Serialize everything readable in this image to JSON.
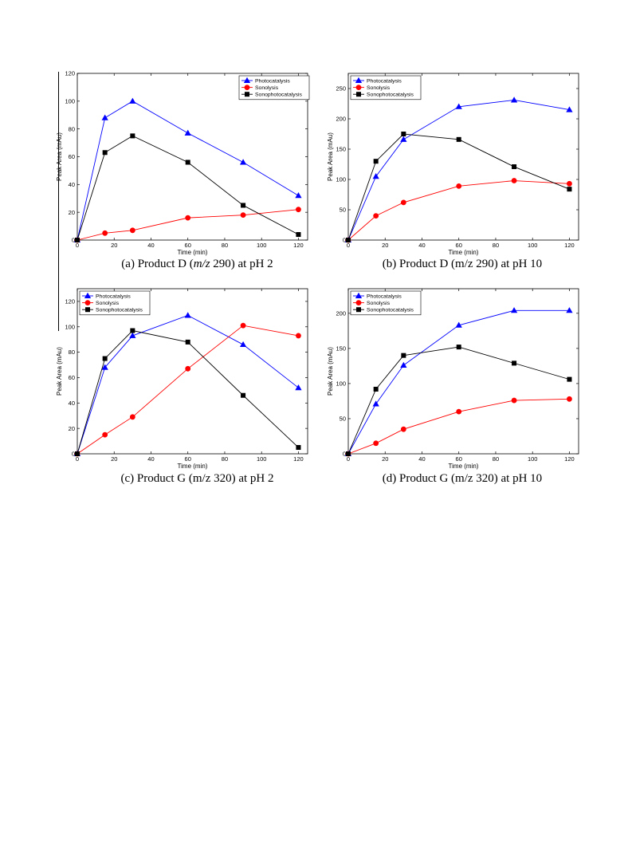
{
  "chart_data": [
    {
      "type": "line",
      "panel_id": "a",
      "caption": {
        "pre": "(a) Product D (",
        "italic": "m/z",
        "post": " 290) at pH 2"
      },
      "xlabel": "Time (min)",
      "ylabel": "Peak Area (mAu)",
      "xlim": [
        0,
        125
      ],
      "ylim": [
        0,
        120
      ],
      "xticks": [
        0,
        20,
        40,
        60,
        80,
        100,
        120
      ],
      "yticks": [
        0,
        20,
        40,
        60,
        80,
        100,
        120
      ],
      "grid": false,
      "legend": "top-right",
      "x": [
        0,
        15,
        30,
        60,
        90,
        120
      ],
      "series": [
        {
          "name": "Photocatalysis",
          "color": "#0000ff",
          "marker": "triangle",
          "values": [
            0,
            88,
            100,
            77,
            56,
            32
          ]
        },
        {
          "name": "Sonolysis",
          "color": "#ff0000",
          "marker": "circle",
          "values": [
            0,
            5,
            7,
            16,
            18,
            22
          ]
        },
        {
          "name": "Sonophotocatalysis",
          "color": "#000000",
          "marker": "square",
          "values": [
            0,
            63,
            75,
            56,
            25,
            4
          ]
        }
      ]
    },
    {
      "type": "line",
      "panel_id": "b",
      "caption": {
        "pre": "(b) Product D (m/z 290) at pH 10",
        "italic": "",
        "post": ""
      },
      "xlabel": "Time (min)",
      "ylabel": "Peak Area (mAu)",
      "xlim": [
        0,
        125
      ],
      "ylim": [
        0,
        275
      ],
      "xticks": [
        0,
        20,
        40,
        60,
        80,
        100,
        120
      ],
      "yticks": [
        0,
        50,
        100,
        150,
        200,
        250
      ],
      "grid": false,
      "legend": "top-left",
      "x": [
        0,
        15,
        30,
        60,
        90,
        120
      ],
      "series": [
        {
          "name": "Photocatalysis",
          "color": "#0000ff",
          "marker": "triangle",
          "values": [
            0,
            105,
            166,
            220,
            231,
            215
          ]
        },
        {
          "name": "Sonolysis",
          "color": "#ff0000",
          "marker": "circle",
          "values": [
            0,
            40,
            62,
            89,
            98,
            93
          ]
        },
        {
          "name": "Sonophotocatalysis",
          "color": "#000000",
          "marker": "square",
          "values": [
            0,
            130,
            175,
            166,
            121,
            84
          ]
        }
      ]
    },
    {
      "type": "line",
      "panel_id": "c",
      "caption": {
        "pre": "(c) Product G (m/z 320) at pH 2",
        "italic": "",
        "post": ""
      },
      "xlabel": "Time (min)",
      "ylabel": "Peak Area (mAu)",
      "xlim": [
        0,
        125
      ],
      "ylim": [
        0,
        130
      ],
      "xticks": [
        0,
        20,
        40,
        60,
        80,
        100,
        120
      ],
      "yticks": [
        0,
        20,
        40,
        60,
        80,
        100,
        120
      ],
      "grid": false,
      "legend": "top-left",
      "x": [
        0,
        15,
        30,
        60,
        90,
        120
      ],
      "series": [
        {
          "name": "Photocatalysis",
          "color": "#0000ff",
          "marker": "triangle",
          "values": [
            0,
            68,
            93,
            109,
            86,
            52
          ]
        },
        {
          "name": "Sonolysis",
          "color": "#ff0000",
          "marker": "circle",
          "values": [
            0,
            15,
            29,
            67,
            101,
            93
          ]
        },
        {
          "name": "Sonophotocatalysis",
          "color": "#000000",
          "marker": "square",
          "values": [
            0,
            75,
            97,
            88,
            46,
            5
          ]
        }
      ]
    },
    {
      "type": "line",
      "panel_id": "d",
      "caption": {
        "pre": "(d) Product G (m/z 320) at pH 10",
        "italic": "",
        "post": ""
      },
      "xlabel": "Time (min)",
      "ylabel": "Peak Area (mAu)",
      "xlim": [
        0,
        125
      ],
      "ylim": [
        0,
        235
      ],
      "xticks": [
        0,
        20,
        40,
        60,
        80,
        100,
        120
      ],
      "yticks": [
        0,
        50,
        100,
        150,
        200
      ],
      "grid": false,
      "legend": "top-left",
      "x": [
        0,
        15,
        30,
        60,
        90,
        120
      ],
      "series": [
        {
          "name": "Photocatalysis",
          "color": "#0000ff",
          "marker": "triangle",
          "values": [
            0,
            71,
            126,
            183,
            204,
            204
          ]
        },
        {
          "name": "Sonolysis",
          "color": "#ff0000",
          "marker": "circle",
          "values": [
            0,
            15,
            35,
            60,
            76,
            78
          ]
        },
        {
          "name": "Sonophotocatalysis",
          "color": "#000000",
          "marker": "square",
          "values": [
            0,
            92,
            140,
            152,
            129,
            106
          ]
        }
      ]
    }
  ]
}
